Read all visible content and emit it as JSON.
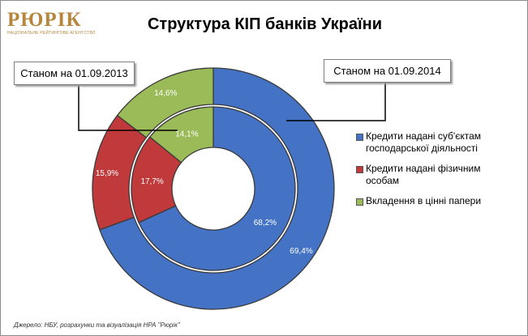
{
  "logo": {
    "name": "РЮРІК",
    "subtitle": "НАЦІОНАЛЬНЕ РЕЙТИНГОВЕ АГЕНТСТВО"
  },
  "colors": {
    "credits_business": "#4472c4",
    "credits_individuals": "#c0393b",
    "securities": "#9bbb59"
  },
  "callouts": {
    "outer": "Станом на 01.09.2014",
    "inner": "Станом на 01.09.2013"
  },
  "source": "Джерело: НБУ, розрахунки та візуалізація НРА \"Рюрік\"",
  "chart_data": {
    "type": "pie",
    "subtype": "doughnut",
    "title": "Структура КІП банків України",
    "legend_position": "right",
    "categories": [
      "Кредити надані суб'єктам господарської діяльності",
      "Кредити надані фізичним особам",
      "Вкладення в цінні папери"
    ],
    "legend_labels": [
      [
        "Кредити надані суб'єктам",
        "господарської діяльності"
      ],
      [
        "Кредити надані фізичним",
        "особам"
      ],
      [
        "Вкладення в цінні папери"
      ]
    ],
    "series": [
      {
        "name": "Станом на 01.09.2014",
        "ring": "outer",
        "values": [
          69.4,
          15.9,
          14.6
        ],
        "labels": [
          "69,4%",
          "15,9%",
          "14,6%"
        ]
      },
      {
        "name": "Станом на 01.09.2013",
        "ring": "inner",
        "values": [
          68.2,
          17.7,
          14.1
        ],
        "labels": [
          "68,2%",
          "17,7%",
          "14,1%"
        ]
      }
    ]
  }
}
